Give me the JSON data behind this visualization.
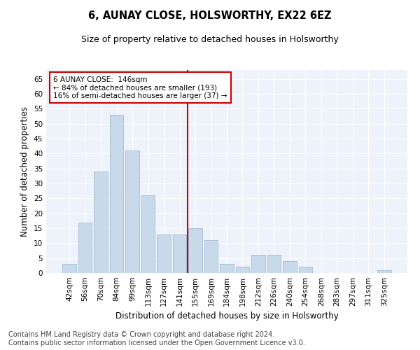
{
  "title": "6, AUNAY CLOSE, HOLSWORTHY, EX22 6EZ",
  "subtitle": "Size of property relative to detached houses in Holsworthy",
  "xlabel": "Distribution of detached houses by size in Holsworthy",
  "ylabel": "Number of detached properties",
  "bar_color": "#c8daea",
  "bar_edge_color": "#a0bcd4",
  "bg_color": "#eef2fb",
  "grid_color": "#ffffff",
  "annotation_box_color": "#cc0000",
  "annotation_line_color": "#cc0000",
  "annotation_text_line1": "6 AUNAY CLOSE:  146sqm",
  "annotation_text_line2": "← 84% of detached houses are smaller (193)",
  "annotation_text_line3": "16% of semi-detached houses are larger (37) →",
  "property_bin_index": 7,
  "categories": [
    "42sqm",
    "56sqm",
    "70sqm",
    "84sqm",
    "99sqm",
    "113sqm",
    "127sqm",
    "141sqm",
    "155sqm",
    "169sqm",
    "184sqm",
    "198sqm",
    "212sqm",
    "226sqm",
    "240sqm",
    "254sqm",
    "268sqm",
    "283sqm",
    "297sqm",
    "311sqm",
    "325sqm"
  ],
  "values": [
    3,
    17,
    34,
    53,
    41,
    26,
    13,
    13,
    15,
    11,
    3,
    2,
    6,
    6,
    4,
    2,
    0,
    0,
    0,
    0,
    1
  ],
  "ylim": [
    0,
    68
  ],
  "yticks": [
    0,
    5,
    10,
    15,
    20,
    25,
    30,
    35,
    40,
    45,
    50,
    55,
    60,
    65
  ],
  "footer_line1": "Contains HM Land Registry data © Crown copyright and database right 2024.",
  "footer_line2": "Contains public sector information licensed under the Open Government Licence v3.0.",
  "footer_fontsize": 7,
  "title_fontsize": 10.5,
  "subtitle_fontsize": 9,
  "axis_label_fontsize": 8.5,
  "tick_fontsize": 7.5,
  "annotation_fontsize": 7.5
}
